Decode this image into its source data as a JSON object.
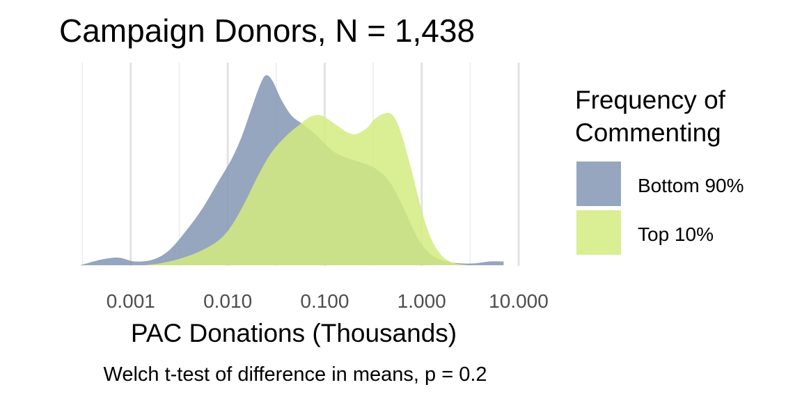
{
  "chart_data": {
    "type": "area",
    "title": "Campaign Donors, N = 1,438",
    "xlabel": "PAC Donations (Thousands)",
    "ylabel": "",
    "caption": "Welch t-test of difference in means, p = 0.2",
    "x_scale": "log10",
    "xlim": [
      0.0003,
      7
    ],
    "x_ticks": [
      0.001,
      0.01,
      0.1,
      1,
      10
    ],
    "x_tick_labels": [
      "0.001",
      "0.010",
      "0.100",
      "1.000",
      "10.000"
    ],
    "y_axis_shown": false,
    "grid": true,
    "legend": {
      "title": "Frequency of Commenting",
      "title_lines": [
        "Frequency of",
        "Commenting"
      ],
      "position": "right"
    },
    "series": [
      {
        "name": "Bottom 90%",
        "color": "#8497b4",
        "opacity": 0.85,
        "points": [
          [
            0.0003,
            0.0
          ],
          [
            0.0005,
            0.03
          ],
          [
            0.00075,
            0.04
          ],
          [
            0.0011,
            0.02
          ],
          [
            0.0017,
            0.03
          ],
          [
            0.0025,
            0.08
          ],
          [
            0.0037,
            0.18
          ],
          [
            0.0055,
            0.3
          ],
          [
            0.008,
            0.44
          ],
          [
            0.011,
            0.56
          ],
          [
            0.014,
            0.68
          ],
          [
            0.018,
            0.84
          ],
          [
            0.022,
            0.96
          ],
          [
            0.025,
            1.0
          ],
          [
            0.029,
            0.97
          ],
          [
            0.035,
            0.88
          ],
          [
            0.045,
            0.79
          ],
          [
            0.06,
            0.74
          ],
          [
            0.08,
            0.69
          ],
          [
            0.1,
            0.64
          ],
          [
            0.13,
            0.59
          ],
          [
            0.18,
            0.56
          ],
          [
            0.24,
            0.54
          ],
          [
            0.33,
            0.51
          ],
          [
            0.45,
            0.45
          ],
          [
            0.6,
            0.34
          ],
          [
            0.8,
            0.2
          ],
          [
            1.0,
            0.11
          ],
          [
            1.3,
            0.05
          ],
          [
            1.8,
            0.02
          ],
          [
            2.5,
            0.01
          ],
          [
            3.5,
            0.01
          ],
          [
            5,
            0.02
          ],
          [
            7,
            0.02
          ]
        ]
      },
      {
        "name": "Top 10%",
        "color": "#d4eb80",
        "opacity": 0.85,
        "points": [
          [
            0.0014,
            0.0
          ],
          [
            0.002,
            0.01
          ],
          [
            0.003,
            0.03
          ],
          [
            0.005,
            0.07
          ],
          [
            0.008,
            0.13
          ],
          [
            0.011,
            0.21
          ],
          [
            0.015,
            0.33
          ],
          [
            0.02,
            0.46
          ],
          [
            0.028,
            0.59
          ],
          [
            0.04,
            0.68
          ],
          [
            0.055,
            0.74
          ],
          [
            0.07,
            0.78
          ],
          [
            0.085,
            0.79
          ],
          [
            0.1,
            0.78
          ],
          [
            0.13,
            0.74
          ],
          [
            0.17,
            0.7
          ],
          [
            0.21,
            0.69
          ],
          [
            0.27,
            0.72
          ],
          [
            0.33,
            0.77
          ],
          [
            0.42,
            0.8
          ],
          [
            0.5,
            0.79
          ],
          [
            0.6,
            0.71
          ],
          [
            0.75,
            0.54
          ],
          [
            0.9,
            0.38
          ],
          [
            1.05,
            0.25
          ],
          [
            1.25,
            0.14
          ],
          [
            1.5,
            0.07
          ],
          [
            1.8,
            0.03
          ],
          [
            2.2,
            0.01
          ],
          [
            3,
            0.0
          ]
        ]
      }
    ]
  }
}
